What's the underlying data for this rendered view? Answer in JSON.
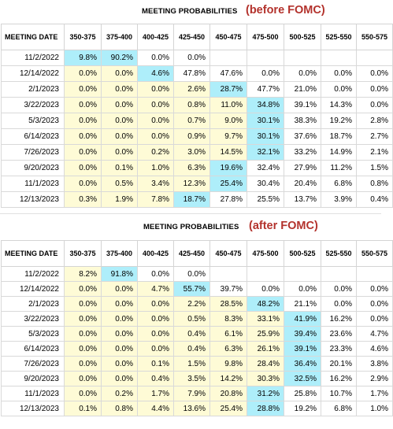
{
  "chart_data": [
    {
      "type": "table",
      "title": "MEETING PROBABILITIES",
      "subtitle": "(before FOMC)",
      "columns": [
        "MEETING DATE",
        "350-375",
        "375-400",
        "400-425",
        "425-450",
        "450-475",
        "475-500",
        "500-525",
        "525-550",
        "550-575"
      ],
      "rows": [
        [
          "11/2/2022",
          "9.8%",
          "90.2%",
          "0.0%",
          "0.0%",
          "",
          "",
          "",
          "",
          ""
        ],
        [
          "12/14/2022",
          "0.0%",
          "0.0%",
          "4.6%",
          "47.8%",
          "47.6%",
          "0.0%",
          "0.0%",
          "0.0%",
          "0.0%"
        ],
        [
          "2/1/2023",
          "0.0%",
          "0.0%",
          "0.0%",
          "2.6%",
          "28.7%",
          "47.7%",
          "21.0%",
          "0.0%",
          "0.0%"
        ],
        [
          "3/22/2023",
          "0.0%",
          "0.0%",
          "0.0%",
          "0.8%",
          "11.0%",
          "34.8%",
          "39.1%",
          "14.3%",
          "0.0%"
        ],
        [
          "5/3/2023",
          "0.0%",
          "0.0%",
          "0.0%",
          "0.7%",
          "9.0%",
          "30.1%",
          "38.3%",
          "19.2%",
          "2.8%"
        ],
        [
          "6/14/2023",
          "0.0%",
          "0.0%",
          "0.0%",
          "0.9%",
          "9.7%",
          "30.1%",
          "37.6%",
          "18.7%",
          "2.7%"
        ],
        [
          "7/26/2023",
          "0.0%",
          "0.0%",
          "0.2%",
          "3.0%",
          "14.5%",
          "32.1%",
          "33.2%",
          "14.9%",
          "2.1%"
        ],
        [
          "9/20/2023",
          "0.0%",
          "0.1%",
          "1.0%",
          "6.3%",
          "19.6%",
          "32.4%",
          "27.9%",
          "11.2%",
          "1.5%"
        ],
        [
          "11/1/2023",
          "0.0%",
          "0.5%",
          "3.4%",
          "12.3%",
          "25.4%",
          "30.4%",
          "20.4%",
          "6.8%",
          "0.8%"
        ],
        [
          "12/13/2023",
          "0.3%",
          "1.9%",
          "7.8%",
          "18.7%",
          "27.8%",
          "25.5%",
          "13.7%",
          "3.9%",
          "0.4%"
        ]
      ],
      "highlight": [
        [
          1,
          2
        ],
        [
          3
        ],
        [
          5
        ],
        [
          6
        ],
        [
          6
        ],
        [
          6
        ],
        [
          6
        ],
        [
          5
        ],
        [
          5
        ],
        [
          4
        ]
      ],
      "colors": {
        "yellow": "#fefbd6",
        "blue": "#aeeefa",
        "note": "#b3322c"
      }
    },
    {
      "type": "table",
      "title": "MEETING PROBABILITIES",
      "subtitle": "(after FOMC)",
      "columns": [
        "MEETING DATE",
        "350-375",
        "375-400",
        "400-425",
        "425-450",
        "450-475",
        "475-500",
        "500-525",
        "525-550",
        "550-575"
      ],
      "rows": [
        [
          "11/2/2022",
          "8.2%",
          "91.8%",
          "0.0%",
          "0.0%",
          "",
          "",
          "",
          "",
          ""
        ],
        [
          "12/14/2022",
          "0.0%",
          "0.0%",
          "4.7%",
          "55.7%",
          "39.7%",
          "0.0%",
          "0.0%",
          "0.0%",
          "0.0%"
        ],
        [
          "2/1/2023",
          "0.0%",
          "0.0%",
          "0.0%",
          "2.2%",
          "28.5%",
          "48.2%",
          "21.1%",
          "0.0%",
          "0.0%"
        ],
        [
          "3/22/2023",
          "0.0%",
          "0.0%",
          "0.0%",
          "0.5%",
          "8.3%",
          "33.1%",
          "41.9%",
          "16.2%",
          "0.0%"
        ],
        [
          "5/3/2023",
          "0.0%",
          "0.0%",
          "0.0%",
          "0.4%",
          "6.1%",
          "25.9%",
          "39.4%",
          "23.6%",
          "4.7%"
        ],
        [
          "6/14/2023",
          "0.0%",
          "0.0%",
          "0.0%",
          "0.4%",
          "6.3%",
          "26.1%",
          "39.1%",
          "23.3%",
          "4.6%"
        ],
        [
          "7/26/2023",
          "0.0%",
          "0.0%",
          "0.1%",
          "1.5%",
          "9.8%",
          "28.4%",
          "36.4%",
          "20.1%",
          "3.8%"
        ],
        [
          "9/20/2023",
          "0.0%",
          "0.0%",
          "0.4%",
          "3.5%",
          "14.2%",
          "30.3%",
          "32.5%",
          "16.2%",
          "2.9%"
        ],
        [
          "11/1/2023",
          "0.0%",
          "0.2%",
          "1.7%",
          "7.9%",
          "20.8%",
          "31.2%",
          "25.8%",
          "10.7%",
          "1.7%"
        ],
        [
          "12/13/2023",
          "0.1%",
          "0.8%",
          "4.4%",
          "13.6%",
          "25.4%",
          "28.8%",
          "19.2%",
          "6.8%",
          "1.0%"
        ]
      ],
      "highlight": [
        [
          2
        ],
        [
          4
        ],
        [
          6
        ],
        [
          7
        ],
        [
          7
        ],
        [
          7
        ],
        [
          7
        ],
        [
          7
        ],
        [
          6
        ],
        [
          6
        ]
      ],
      "colors": {
        "yellow": "#fefbd6",
        "blue": "#aeeefa",
        "note": "#b3322c"
      }
    }
  ]
}
